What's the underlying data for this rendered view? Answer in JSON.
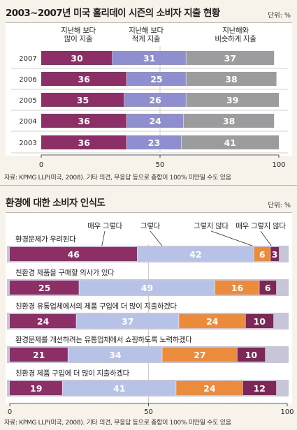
{
  "chart1": {
    "title": "2003~2007년 미국 홀리데이 시즌의 소비자 지출 현황",
    "unit": "단위: %",
    "source": "자료: KPMG LLP(미국, 2008).  기타 의견, 무응답 등으로 총합이 100% 미만일 수도 있음",
    "headers": [
      "지난해 보다\n많이 지출",
      "지난해 보다\n적게 지출",
      "지난해와\n비슷하게 지출"
    ]
  },
  "chart2": {
    "title": "환경에 대한 소비자 인식도",
    "unit": "단위: %",
    "source": "자료: KPMG LLP(미국, 2008).  기타 의견, 무응답 등으로 총합이 100% 미만일 수도 있음",
    "headers": [
      "매우 그렇다",
      "그렇다",
      "그렇지 않다",
      "매우 그렇지 않다"
    ]
  },
  "colors": {
    "purple": "#8b2f66",
    "lavender": "#8f8fd0",
    "gray": "#9c9c9e",
    "lightblue": "#b7c3e6",
    "orange": "#eb8c3d",
    "dark_purple": "#7d2756",
    "row_band": "#c9c5d9"
  },
  "chart_data": [
    {
      "type": "bar",
      "orientation": "horizontal",
      "stacked": true,
      "categories": [
        "2007",
        "2006",
        "2005",
        "2004",
        "2003"
      ],
      "series": [
        {
          "name": "지난해 보다 많이 지출",
          "values": [
            30,
            36,
            35,
            36,
            36
          ]
        },
        {
          "name": "지난해 보다 적게 지출",
          "values": [
            31,
            25,
            26,
            24,
            23
          ]
        },
        {
          "name": "지난해와 비슷하게 지출",
          "values": [
            37,
            38,
            39,
            38,
            41
          ]
        }
      ],
      "xlim": [
        0,
        100
      ],
      "xticks": [
        "0",
        "50",
        "100"
      ]
    },
    {
      "type": "bar",
      "orientation": "horizontal",
      "stacked": true,
      "categories": [
        "환경문제가 우려된다",
        "친환경 제품을 구매할 의사가 있다",
        "친환경 유통업체에서의 제품 구입에 더 많이 지출하겠다",
        "환경문제를 개선하려는 유통업체에서 쇼핑하도록 노력하겠다",
        "친환경 제품 구입에 더 많이 지출하겠다"
      ],
      "series": [
        {
          "name": "매우 그렇다",
          "values": [
            46,
            25,
            24,
            21,
            19
          ]
        },
        {
          "name": "그렇다",
          "values": [
            42,
            49,
            37,
            34,
            41
          ]
        },
        {
          "name": "그렇지 않다",
          "values": [
            6,
            16,
            24,
            27,
            24
          ]
        },
        {
          "name": "매우 그렇지 않다",
          "values": [
            3,
            6,
            10,
            10,
            12
          ]
        }
      ],
      "xlim": [
        0,
        100
      ],
      "xticks": [
        "0",
        "50",
        "100"
      ]
    }
  ]
}
